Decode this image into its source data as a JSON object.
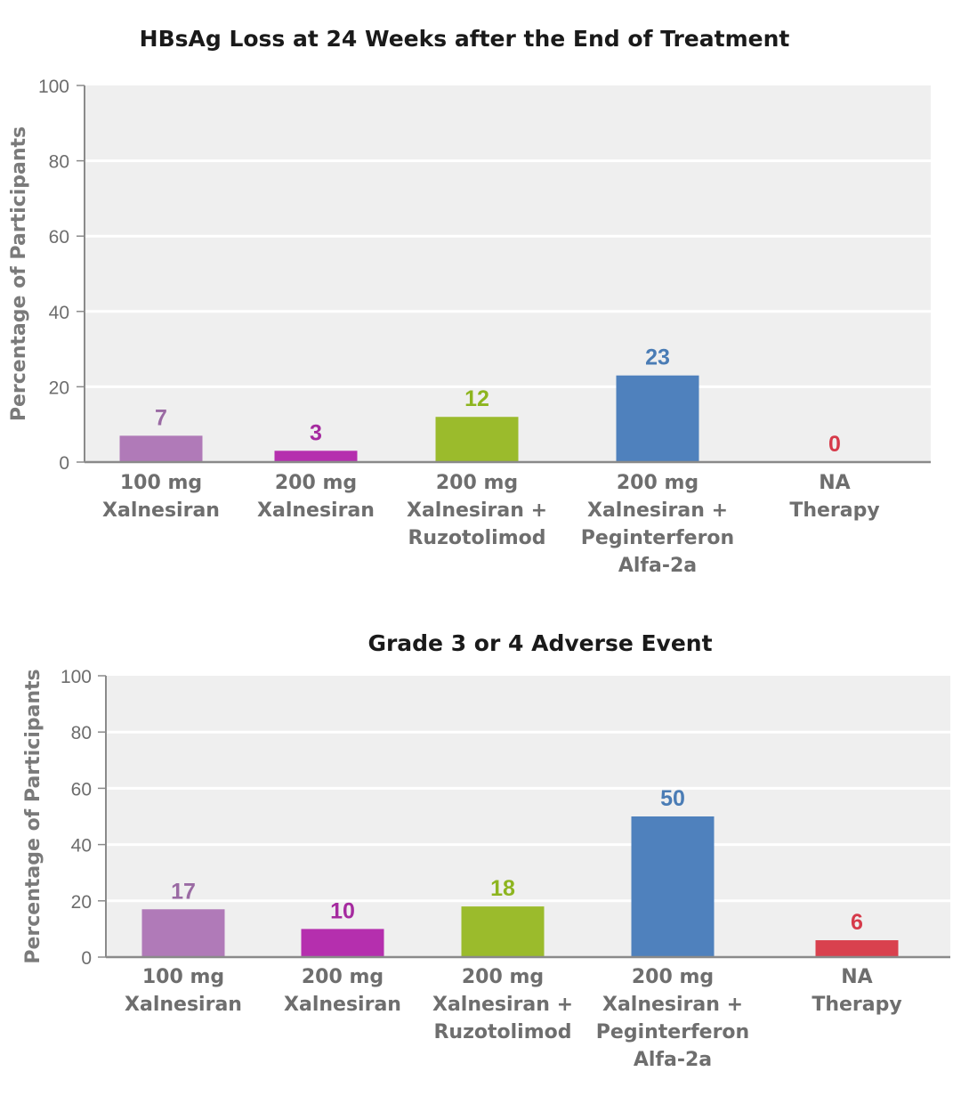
{
  "chart_data": [
    {
      "type": "bar",
      "title": "HBsAg Loss at 24 Weeks after the End of Treatment",
      "xlabel": "",
      "ylabel": "Percentage of Participants",
      "ylim": [
        0,
        100
      ],
      "yticks": [
        0,
        20,
        40,
        60,
        80,
        100
      ],
      "grid": true,
      "categories": [
        [
          "100 mg",
          "Xalnesiran"
        ],
        [
          "200 mg",
          "Xalnesiran"
        ],
        [
          "200 mg",
          "Xalnesiran +",
          "Ruzotolimod"
        ],
        [
          "200 mg",
          "Xalnesiran +",
          "Peginterferon",
          "Alfa-2a"
        ],
        [
          "NA",
          "Therapy"
        ]
      ],
      "values": [
        7,
        3,
        12,
        23,
        0
      ],
      "value_labels": [
        "7",
        "3",
        "12",
        "23",
        "0"
      ],
      "colors": [
        "#b07ab8",
        "#b52fae",
        "#9bbb2c",
        "#4f81bd",
        "#d9414e"
      ]
    },
    {
      "type": "bar",
      "title": "Grade 3 or 4 Adverse Event",
      "xlabel": "",
      "ylabel": "Percentage of Participants",
      "ylim": [
        0,
        100
      ],
      "yticks": [
        0,
        20,
        40,
        60,
        80,
        100
      ],
      "grid": true,
      "categories": [
        [
          "100 mg",
          "Xalnesiran"
        ],
        [
          "200 mg",
          "Xalnesiran"
        ],
        [
          "200 mg",
          "Xalnesiran +",
          "Ruzotolimod"
        ],
        [
          "200 mg",
          "Xalnesiran +",
          "Peginterferon",
          "Alfa-2a"
        ],
        [
          "NA",
          "Therapy"
        ]
      ],
      "values": [
        17,
        10,
        18,
        50,
        6
      ],
      "value_labels": [
        "17",
        "10",
        "18",
        "50",
        "6"
      ],
      "colors": [
        "#b07ab8",
        "#b52fae",
        "#9bbb2c",
        "#4f81bd",
        "#d9414e"
      ]
    }
  ],
  "label_colors": [
    "#9a6aa3",
    "#a52a9f",
    "#8db51f",
    "#4a7cb5",
    "#d63a4a"
  ]
}
